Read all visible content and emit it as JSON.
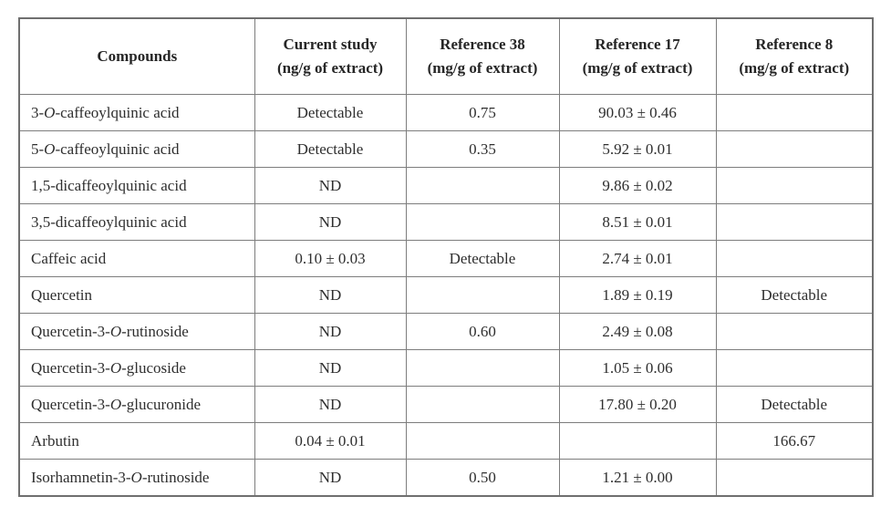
{
  "colors": {
    "background": "#ffffff",
    "table_border": "#6f6f6f",
    "cell_border": "#7d7d7d",
    "text": "#2e2e2e"
  },
  "table": {
    "columns": [
      {
        "key": "compounds",
        "label": "Compounds"
      },
      {
        "key": "current-study",
        "label": "Current study\n(ng/g of extract)"
      },
      {
        "key": "ref38",
        "label": "Reference 38\n(mg/g of extract)"
      },
      {
        "key": "ref17",
        "label": "Reference 17\n(mg/g of extract)"
      },
      {
        "key": "ref8",
        "label": "Reference 8\n(mg/g of extract)"
      }
    ],
    "rows": [
      [
        "3-*O*-caffeoylquinic acid",
        "Detectable",
        "0.75",
        "90.03 ± 0.46",
        ""
      ],
      [
        "5-*O*-caffeoylquinic acid",
        "Detectable",
        "0.35",
        "5.92 ± 0.01",
        ""
      ],
      [
        "1,5-dicaffeoylquinic acid",
        "ND",
        "",
        "9.86 ± 0.02",
        ""
      ],
      [
        "3,5-dicaffeoylquinic acid",
        "ND",
        "",
        "8.51 ± 0.01",
        ""
      ],
      [
        "Caffeic acid",
        "0.10 ± 0.03",
        "Detectable",
        "2.74 ± 0.01",
        ""
      ],
      [
        "Quercetin",
        "ND",
        "",
        "1.89 ± 0.19",
        "Detectable"
      ],
      [
        "Quercetin-3-*O*-rutinoside",
        "ND",
        "0.60",
        "2.49 ± 0.08",
        ""
      ],
      [
        "Quercetin-3-*O*-glucoside",
        "ND",
        "",
        "1.05 ± 0.06",
        ""
      ],
      [
        "Quercetin-3-*O*-glucuronide",
        "ND",
        "",
        "17.80 ± 0.20",
        "Detectable"
      ],
      [
        "Arbutin",
        "0.04 ± 0.01",
        "",
        "",
        "166.67"
      ],
      [
        "Isorhamnetin-3-*O*-rutinoside",
        "ND",
        "0.50",
        "1.21 ± 0.00",
        ""
      ]
    ]
  }
}
